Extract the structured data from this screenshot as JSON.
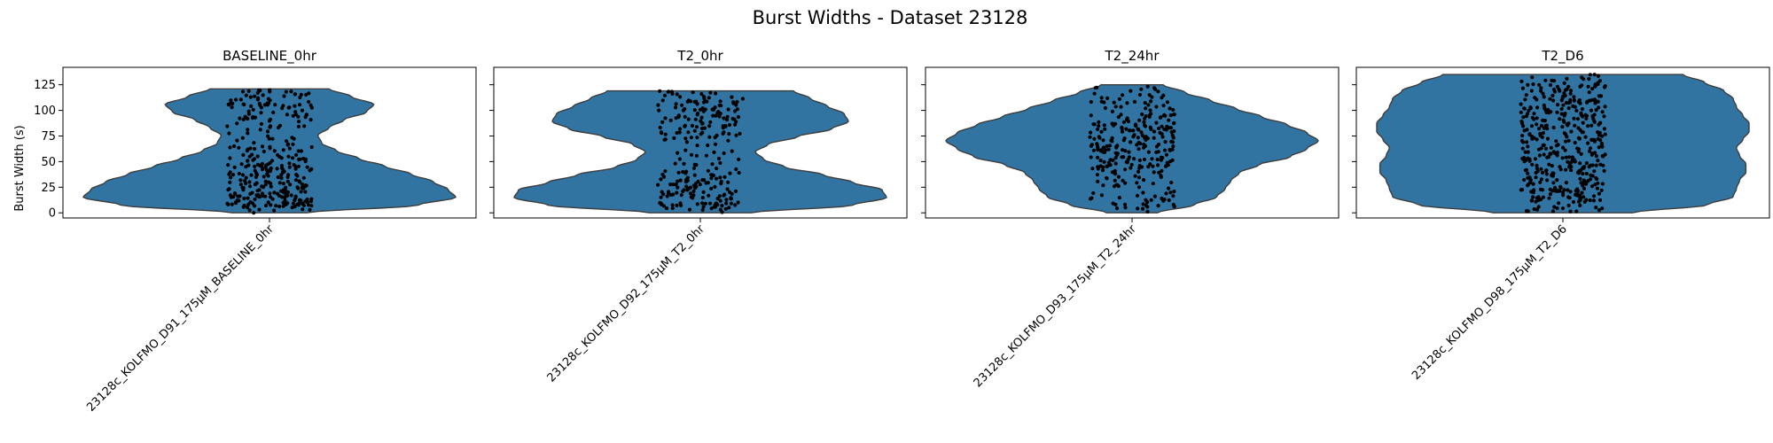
{
  "figure": {
    "title": "Burst Widths - Dataset 23128"
  },
  "chart_data": [
    {
      "type": "violin",
      "title": "BASELINE_0hr",
      "ylabel": "Burst Width (s)",
      "ylim": [
        -5,
        142
      ],
      "yticks": [
        0,
        25,
        50,
        75,
        100,
        125
      ],
      "categories": [
        "23128c_KOLFMO_D91_175µM_BASELINE_0hr"
      ],
      "data_range": [
        0,
        121
      ],
      "n_points": 330,
      "seed": 11,
      "density": [
        0.1,
        0.4,
        0.5,
        0.48,
        0.44,
        0.38,
        0.31,
        0.24,
        0.18,
        0.14,
        0.13,
        0.16,
        0.2,
        0.26,
        0.28,
        0.22,
        0.16
      ],
      "violin_color": "#3274a1",
      "point_color": "#000000"
    },
    {
      "type": "violin",
      "title": "T2_0hr",
      "ylabel": "",
      "ylim": [
        -5,
        142
      ],
      "yticks": [
        0,
        25,
        50,
        75,
        100,
        125
      ],
      "categories": [
        "23128c_KOLFMO_D92_175µM_T2_0hr"
      ],
      "data_range": [
        0,
        119
      ],
      "n_points": 260,
      "seed": 23,
      "density": [
        0.12,
        0.36,
        0.44,
        0.43,
        0.36,
        0.29,
        0.2,
        0.15,
        0.13,
        0.16,
        0.23,
        0.31,
        0.35,
        0.34,
        0.3,
        0.26,
        0.22
      ],
      "violin_color": "#3274a1",
      "point_color": "#000000"
    },
    {
      "type": "violin",
      "title": "T2_24hr",
      "ylabel": "",
      "ylim": [
        -5,
        142
      ],
      "yticks": [
        0,
        25,
        50,
        75,
        100,
        125
      ],
      "categories": [
        "23128c_KOLFMO_D93_175µM_T2_24hr"
      ],
      "data_range": [
        0,
        125
      ],
      "n_points": 290,
      "seed": 37,
      "density": [
        0.09,
        0.22,
        0.3,
        0.33,
        0.35,
        0.38,
        0.45,
        0.56,
        0.62,
        0.66,
        0.62,
        0.55,
        0.46,
        0.37,
        0.28,
        0.19,
        0.11
      ],
      "violin_color": "#3274a1",
      "point_color": "#000000"
    },
    {
      "type": "violin",
      "title": "T2_D6",
      "ylabel": "",
      "ylim": [
        -5,
        142
      ],
      "yticks": [
        0,
        25,
        50,
        75,
        100,
        125
      ],
      "categories": [
        "23128c_KOLFMO_D98_175µM_T2_D6"
      ],
      "data_range": [
        0,
        135
      ],
      "n_points": 430,
      "seed": 53,
      "density": [
        0.22,
        0.46,
        0.54,
        0.55,
        0.56,
        0.58,
        0.58,
        0.56,
        0.55,
        0.57,
        0.59,
        0.59,
        0.57,
        0.55,
        0.54,
        0.51,
        0.45,
        0.38
      ],
      "violin_color": "#3274a1",
      "point_color": "#000000"
    }
  ]
}
